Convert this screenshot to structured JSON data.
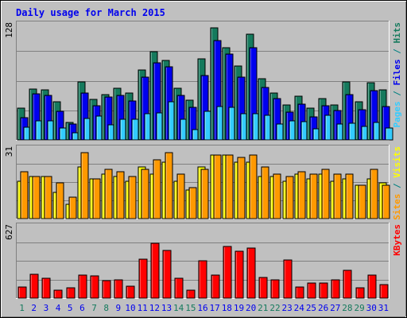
{
  "chart_data": {
    "type": "bar",
    "title": "Daily usage for March 2015",
    "days": [
      "1",
      "2",
      "3",
      "4",
      "5",
      "6",
      "7",
      "8",
      "9",
      "10",
      "11",
      "12",
      "13",
      "14",
      "15",
      "16",
      "17",
      "18",
      "19",
      "20",
      "21",
      "22",
      "23",
      "24",
      "25",
      "26",
      "27",
      "28",
      "29",
      "30",
      "31"
    ],
    "weekend_days": [
      1,
      7,
      8,
      14,
      15,
      21,
      22,
      28,
      29
    ],
    "panels": [
      {
        "id": "top",
        "max_label": "128",
        "ymax": 128,
        "series": [
          {
            "name": "Hits",
            "color": "#157a5d",
            "values": [
              34,
              55,
              54,
              41,
              19,
              63,
              44,
              49,
              56,
              51,
              76,
              95,
              86,
              56,
              43,
              88,
              121,
              100,
              80,
              114,
              66,
              51,
              38,
              47,
              34,
              45,
              38,
              63,
              41,
              62,
              54
            ]
          },
          {
            "name": "Files",
            "color": "#0000ee",
            "values": [
              24,
              50,
              48,
              31,
              17,
              51,
              37,
              46,
              48,
              42,
              68,
              83,
              79,
              48,
              35,
              70,
              107,
              93,
              68,
              100,
              57,
              45,
              30,
              39,
              25,
              37,
              32,
              49,
              33,
              53,
              36
            ]
          },
          {
            "name": "Pages",
            "color": "#33ccff",
            "values": [
              14,
              21,
              21,
              13,
              8,
              23,
              26,
              16,
              22,
              22,
              28,
              29,
              41,
              22,
              11,
              31,
              36,
              35,
              28,
              28,
              27,
              17,
              21,
              20,
              12,
              27,
              17,
              18,
              15,
              19,
              13
            ]
          }
        ]
      },
      {
        "id": "middle",
        "max_label": "31",
        "ymax": 31,
        "series": [
          {
            "name": "Visits",
            "color": "#ffff00",
            "values": [
              16,
              18,
              18,
              11,
              6,
              22,
              17,
              19,
              18,
              16,
              22,
              19,
              24,
              16,
              12,
              22,
              27,
              27,
              24,
              24,
              18,
              18,
              16,
              19,
              17,
              19,
              16,
              17,
              14,
              17,
              15
            ]
          },
          {
            "name": "Sites",
            "color": "#ff9900",
            "values": [
              20,
              18,
              18,
              15,
              9,
              28,
              17,
              21,
              20,
              18,
              21,
              25,
              28,
              19,
              13,
              21,
              27,
              27,
              26,
              27,
              22,
              19,
              18,
              20,
              19,
              21,
              19,
              19,
              14,
              21,
              14
            ]
          }
        ]
      },
      {
        "id": "bottom",
        "max_label": "627",
        "ymax": 627,
        "series": [
          {
            "name": "KBytes",
            "color": "#ff0000",
            "values": [
              96,
              200,
              164,
              68,
              86,
              196,
              185,
              150,
              155,
              101,
              330,
              460,
              403,
              168,
              65,
              312,
              195,
              432,
              391,
              420,
              174,
              151,
              322,
              94,
              129,
              126,
              154,
              234,
              86,
              194,
              115
            ]
          }
        ]
      }
    ],
    "right_labels": {
      "top": [
        {
          "text": "Pages",
          "color": "#33ccff"
        },
        {
          "text": " / ",
          "color": "#008080"
        },
        {
          "text": "Files",
          "color": "#0000ee"
        },
        {
          "text": " / ",
          "color": "#008080"
        },
        {
          "text": "Hits",
          "color": "#157a5d"
        }
      ],
      "middle": [
        {
          "text": "Sites",
          "color": "#ff9900"
        },
        {
          "text": " / ",
          "color": "#008080"
        },
        {
          "text": "Visits",
          "color": "#ffff00"
        }
      ],
      "bottom": [
        {
          "text": "KBytes",
          "color": "#ff0000"
        }
      ]
    }
  },
  "colors": {
    "title": "#0000ee",
    "plot_bg": "#c0c0c0",
    "frame_bg": "#c0c0c0",
    "grid": "#808080",
    "weekday_label": "#0000ee",
    "weekend_label": "#157a5d"
  }
}
